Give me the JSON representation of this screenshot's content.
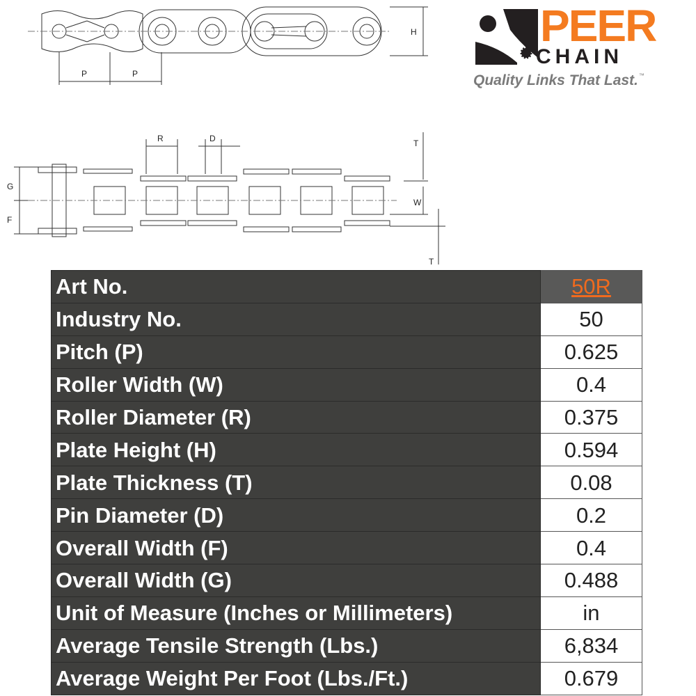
{
  "logo": {
    "brand_top": "PEER",
    "brand_bottom": "CHAIN",
    "tagline": "Quality Links That Last.",
    "trademark": "™",
    "colors": {
      "orange": "#f47b20",
      "dark": "#231f20",
      "grey": "#7a7a7a"
    }
  },
  "diagram_labels": {
    "pitch": "P",
    "height": "H",
    "roller": "R",
    "pin": "D",
    "thickness": "T",
    "width_g": "G",
    "width_f": "F",
    "roller_width": "W"
  },
  "spec_table": {
    "rows": [
      {
        "label": "Art No.",
        "value": "50R"
      },
      {
        "label": "Industry No.",
        "value": "50"
      },
      {
        "label": "Pitch (P)",
        "value": "0.625"
      },
      {
        "label": "Roller Width (W)",
        "value": "0.4"
      },
      {
        "label": "Roller Diameter (R)",
        "value": "0.375"
      },
      {
        "label": "Plate Height (H)",
        "value": "0.594"
      },
      {
        "label": "Plate Thickness (T)",
        "value": "0.08"
      },
      {
        "label": "Pin Diameter (D)",
        "value": "0.2"
      },
      {
        "label": "Overall Width (F)",
        "value": "0.4"
      },
      {
        "label": "Overall Width (G)",
        "value": "0.488"
      },
      {
        "label": "Unit of Measure (Inches or Millimeters)",
        "value": "in"
      },
      {
        "label": "Average Tensile Strength (Lbs.)",
        "value": "6,834"
      },
      {
        "label": "Average Weight Per Foot (Lbs./Ft.)",
        "value": "0.679"
      }
    ],
    "colors": {
      "label_bg": "#3f3f3d",
      "art_no_value": "#f06a1e"
    }
  }
}
